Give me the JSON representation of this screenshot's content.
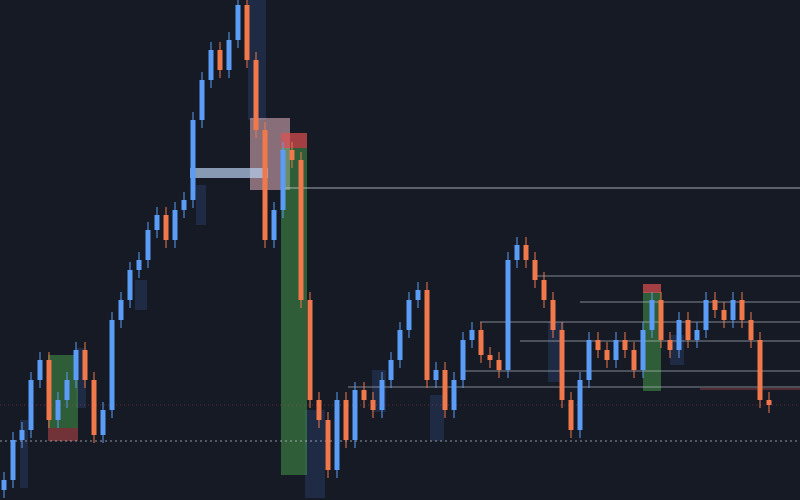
{
  "chart_data": {
    "type": "candlestick",
    "open": [
      10,
      20,
      60,
      70,
      120,
      140,
      80,
      100,
      120,
      150,
      120,
      65,
      90,
      180,
      200,
      230,
      240,
      270,
      285,
      260,
      290,
      300,
      380,
      420,
      450,
      430,
      460,
      495,
      440,
      370,
      260,
      290,
      350,
      340,
      200,
      100,
      80,
      30,
      100,
      60,
      110,
      100,
      90,
      120,
      140,
      170,
      200,
      210,
      120,
      130,
      90,
      120,
      160,
      170,
      145,
      140,
      130,
      240,
      255,
      240,
      220,
      200,
      170,
      100,
      70,
      120,
      160,
      150,
      140,
      160,
      150,
      130,
      170,
      200,
      160,
      150,
      180,
      160,
      170,
      200,
      190,
      180,
      200,
      180,
      160,
      100
    ],
    "high": [
      28,
      68,
      78,
      128,
      148,
      148,
      108,
      128,
      158,
      158,
      128,
      98,
      188,
      208,
      238,
      248,
      278,
      293,
      293,
      298,
      308,
      388,
      428,
      458,
      458,
      468,
      500,
      500,
      448,
      378,
      298,
      358,
      358,
      348,
      208,
      108,
      88,
      108,
      108,
      118,
      118,
      108,
      128,
      148,
      178,
      208,
      218,
      218,
      138,
      138,
      128,
      168,
      178,
      178,
      153,
      148,
      248,
      263,
      263,
      248,
      228,
      208,
      178,
      108,
      128,
      168,
      168,
      158,
      168,
      168,
      158,
      178,
      208,
      208,
      168,
      188,
      188,
      178,
      208,
      208,
      198,
      208,
      208,
      188,
      168,
      108
    ],
    "low": [
      2,
      12,
      52,
      62,
      112,
      72,
      72,
      92,
      112,
      112,
      57,
      57,
      82,
      172,
      192,
      222,
      232,
      262,
      252,
      252,
      282,
      292,
      372,
      412,
      422,
      422,
      452,
      432,
      362,
      252,
      252,
      282,
      332,
      192,
      92,
      72,
      22,
      22,
      52,
      52,
      92,
      82,
      82,
      112,
      132,
      162,
      192,
      112,
      112,
      82,
      82,
      112,
      152,
      137,
      132,
      122,
      122,
      232,
      232,
      212,
      192,
      162,
      92,
      62,
      62,
      112,
      142,
      132,
      132,
      142,
      122,
      122,
      162,
      152,
      142,
      142,
      152,
      152,
      162,
      182,
      172,
      172,
      172,
      152,
      92,
      87
    ],
    "close": [
      20,
      60,
      70,
      120,
      140,
      80,
      100,
      120,
      150,
      120,
      65,
      90,
      180,
      200,
      230,
      240,
      270,
      285,
      260,
      290,
      300,
      380,
      420,
      450,
      430,
      460,
      495,
      440,
      370,
      260,
      290,
      350,
      340,
      200,
      100,
      80,
      30,
      100,
      60,
      110,
      100,
      90,
      120,
      140,
      170,
      200,
      210,
      120,
      130,
      90,
      120,
      160,
      170,
      145,
      140,
      130,
      240,
      255,
      240,
      220,
      200,
      170,
      100,
      70,
      120,
      160,
      150,
      140,
      160,
      150,
      130,
      170,
      200,
      160,
      150,
      180,
      160,
      170,
      200,
      190,
      180,
      200,
      180,
      160,
      100,
      95
    ],
    "ylim": [
      0,
      500
    ],
    "up_color": "#5b9cf6",
    "down_color": "#f0784a"
  }
}
